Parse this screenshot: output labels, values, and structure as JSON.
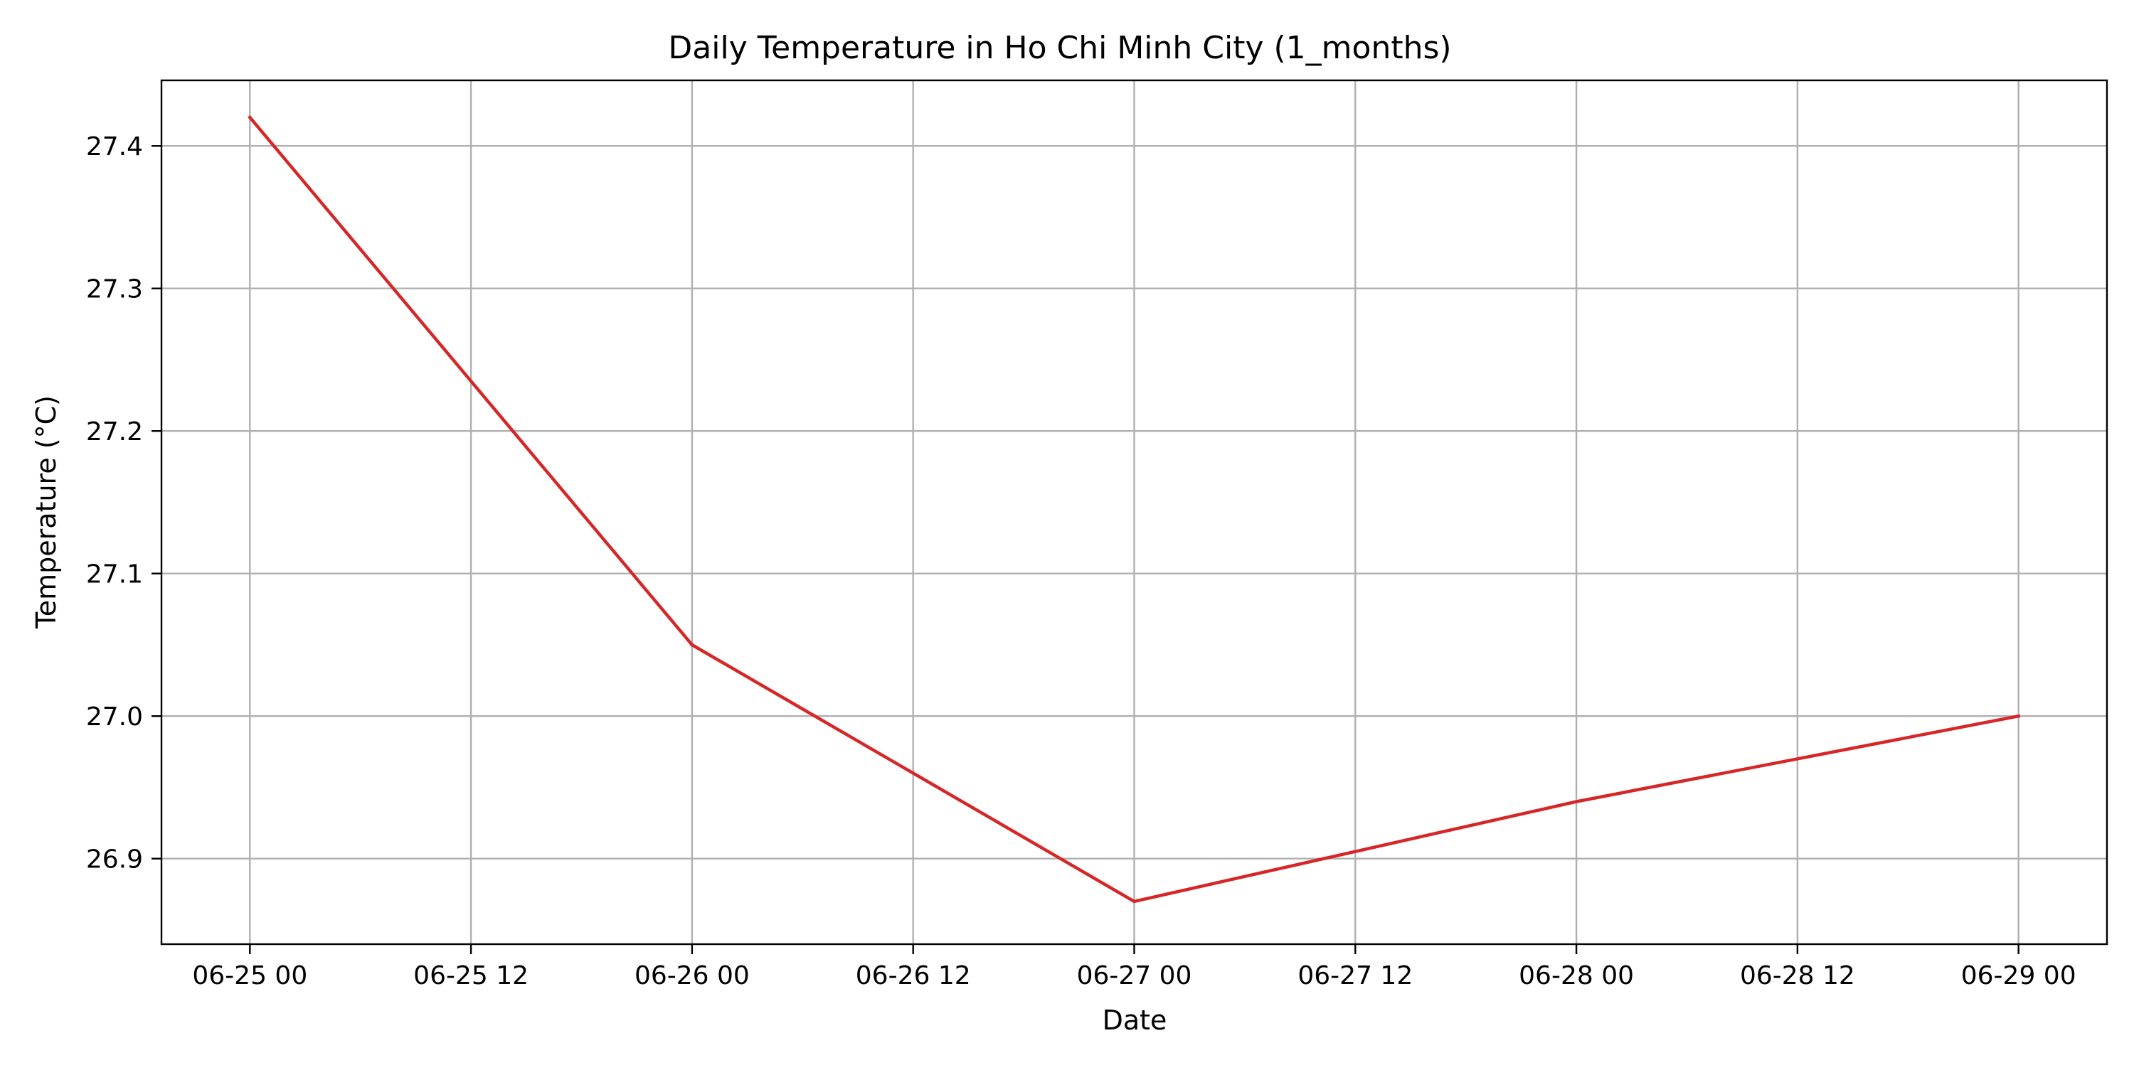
{
  "colors": {
    "background": "#ffffff",
    "line": "#d62728",
    "grid": "#b0b0b0",
    "axis": "#000000"
  },
  "chart_data": {
    "type": "line",
    "title": "Daily Temperature in Ho Chi Minh City (1_months)",
    "xlabel": "Date",
    "ylabel": "Temperature (°C)",
    "x_tick_labels": [
      "06-25 00",
      "06-25 12",
      "06-26 00",
      "06-26 12",
      "06-27 00",
      "06-27 12",
      "06-28 00",
      "06-28 12",
      "06-29 00"
    ],
    "y_tick_values": [
      26.9,
      27.0,
      27.1,
      27.2,
      27.3,
      27.4
    ],
    "y_tick_labels": [
      "26.9",
      "27.0",
      "27.1",
      "27.2",
      "27.3",
      "27.4"
    ],
    "ylim": [
      26.84,
      27.446
    ],
    "xlim": [
      "2024-06-24T19:12",
      "2024-06-29T04:48"
    ],
    "grid": true,
    "series": [
      {
        "x": [
          "2024-06-25",
          "2024-06-26",
          "2024-06-27",
          "2024-06-28",
          "2024-06-29"
        ],
        "values": [
          27.42,
          27.05,
          26.87,
          26.94,
          27.0
        ]
      }
    ]
  }
}
